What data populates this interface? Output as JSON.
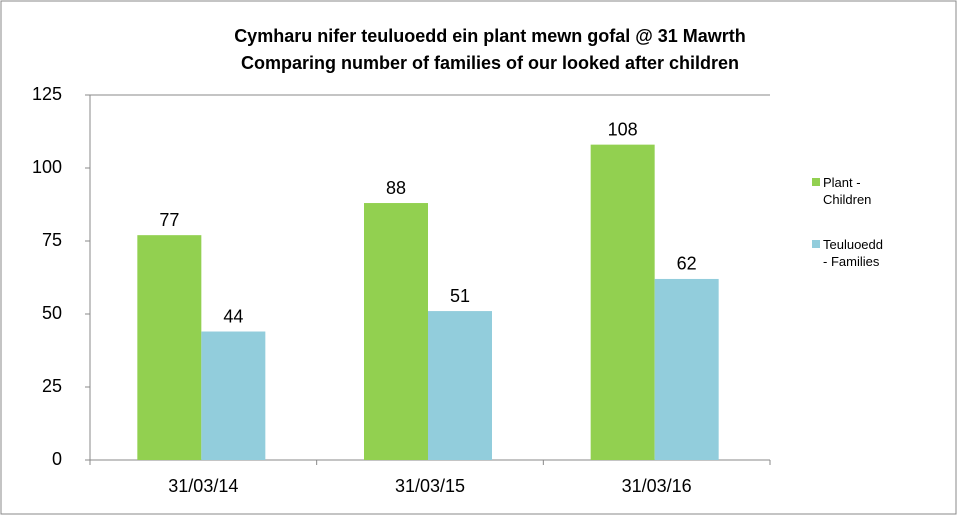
{
  "chart_data": {
    "type": "bar",
    "title": [
      "Cymharu nifer teuluoedd ein plant mewn gofal @ 31 Mawrth",
      "Comparing number of families of our looked after children"
    ],
    "categories": [
      "31/03/14",
      "31/03/15",
      "31/03/16"
    ],
    "series": [
      {
        "name": "Plant - Children",
        "color": "#92d050",
        "values": [
          77,
          88,
          108
        ]
      },
      {
        "name": "Teuluoedd - Families",
        "color": "#92cddc",
        "values": [
          44,
          51,
          62
        ]
      }
    ],
    "ylim": [
      0,
      125
    ],
    "yticks": [
      0,
      25,
      50,
      75,
      100,
      125
    ],
    "grid": false,
    "legend": "right"
  }
}
